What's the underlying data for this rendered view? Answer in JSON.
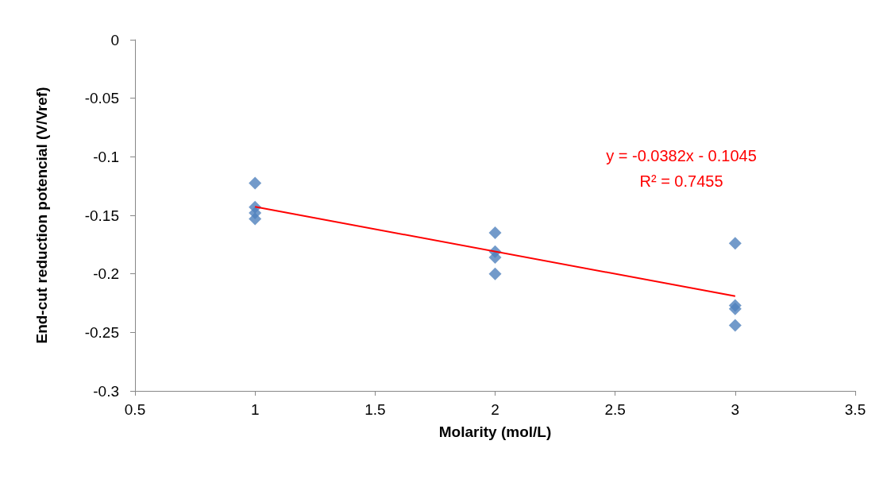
{
  "chart_data": {
    "type": "scatter",
    "xlabel": "Molarity (mol/L)",
    "ylabel": "End-cut reduction potencial (V/Vref)",
    "xlim": [
      0.5,
      3.5
    ],
    "xticks": [
      0.5,
      1,
      1.5,
      2,
      2.5,
      3,
      3.5
    ],
    "ylim": [
      -0.3,
      0
    ],
    "yticks": [
      -0.3,
      -0.25,
      -0.2,
      -0.15,
      -0.1,
      -0.05,
      0
    ],
    "grid": false,
    "marker": "diamond",
    "series": [
      {
        "color": "#4f81bd",
        "x": [
          1,
          1,
          1,
          1,
          2,
          2,
          2,
          2,
          3,
          3,
          3,
          3
        ],
        "values": [
          -0.1225,
          -0.143,
          -0.148,
          -0.153,
          -0.165,
          -0.181,
          -0.186,
          -0.2,
          -0.174,
          -0.227,
          -0.23,
          -0.244
        ]
      },
      {
        "type": "line",
        "color": "#ff0000",
        "x": [
          1,
          3
        ],
        "values": [
          -0.1427,
          -0.2191
        ],
        "marker": "none"
      }
    ],
    "annotations": [
      "y = -0.0382x - 0.1045",
      "R² = 0.7455"
    ]
  }
}
